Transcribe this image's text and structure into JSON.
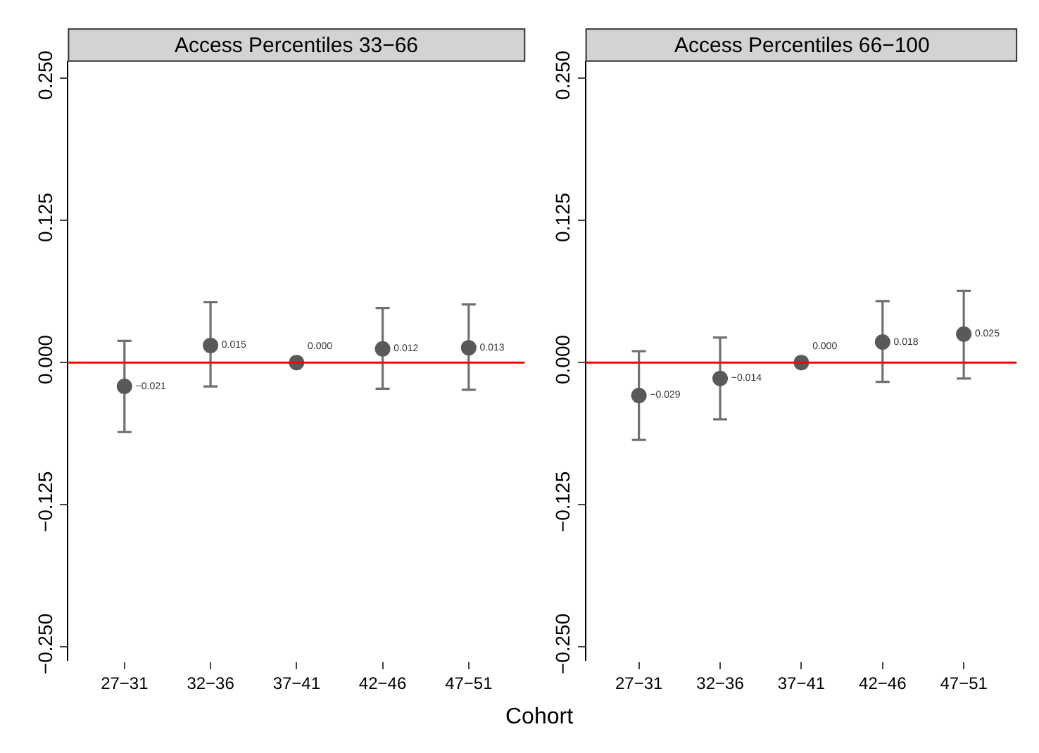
{
  "chart_data": [
    {
      "type": "scatter",
      "title": "Access Percentiles 33−66",
      "xlabel": "Cohort",
      "categories": [
        "27−31",
        "32−36",
        "37−41",
        "42−46",
        "47−51"
      ],
      "series": [
        {
          "color": "#595959",
          "values": [
            -0.021,
            0.015,
            0.0,
            0.012,
            0.013
          ],
          "errors": [
            [
              -0.061,
              0.019
            ],
            [
              -0.021,
              0.053
            ],
            null,
            [
              -0.023,
              0.048
            ],
            [
              -0.024,
              0.051
            ]
          ],
          "value_labels": [
            "−0.021",
            "0.015",
            "0.000",
            "0.012",
            "0.013"
          ]
        }
      ],
      "marker": "circle",
      "ylim": [
        -0.262,
        0.265
      ],
      "yticks": [
        {
          "value": -0.25,
          "label": "−0.250"
        },
        {
          "value": -0.125,
          "label": "−0.125"
        },
        {
          "value": 0,
          "label": "0.000"
        },
        {
          "value": 0.125,
          "label": "0.125"
        },
        {
          "value": 0.25,
          "label": "0.250"
        }
      ],
      "ref_lines": [
        {
          "axis": "y",
          "value": 0,
          "color": "#ff0000"
        }
      ]
    },
    {
      "type": "scatter",
      "title": "Access Percentiles 66−100",
      "categories": [
        "27−31",
        "32−36",
        "37−41",
        "42−46",
        "47−51"
      ],
      "series": [
        {
          "color": "#595959",
          "values": [
            -0.029,
            -0.014,
            0.0,
            0.018,
            0.025
          ],
          "errors": [
            [
              -0.068,
              0.01
            ],
            [
              -0.05,
              0.022
            ],
            null,
            [
              -0.017,
              0.054
            ],
            [
              -0.014,
              0.063
            ]
          ],
          "value_labels": [
            "−0.029",
            "−0.014",
            "0.000",
            "0.018",
            "0.025"
          ]
        }
      ],
      "marker": "circle",
      "ylim": [
        -0.262,
        0.265
      ],
      "yticks": [
        {
          "value": -0.25,
          "label": "−0.250"
        },
        {
          "value": -0.125,
          "label": "−0.125"
        },
        {
          "value": 0,
          "label": "0.000"
        },
        {
          "value": 0.125,
          "label": "0.125"
        },
        {
          "value": 0.25,
          "label": "0.250"
        }
      ],
      "ref_lines": [
        {
          "axis": "y",
          "value": 0,
          "color": "#ff0000"
        }
      ]
    }
  ]
}
